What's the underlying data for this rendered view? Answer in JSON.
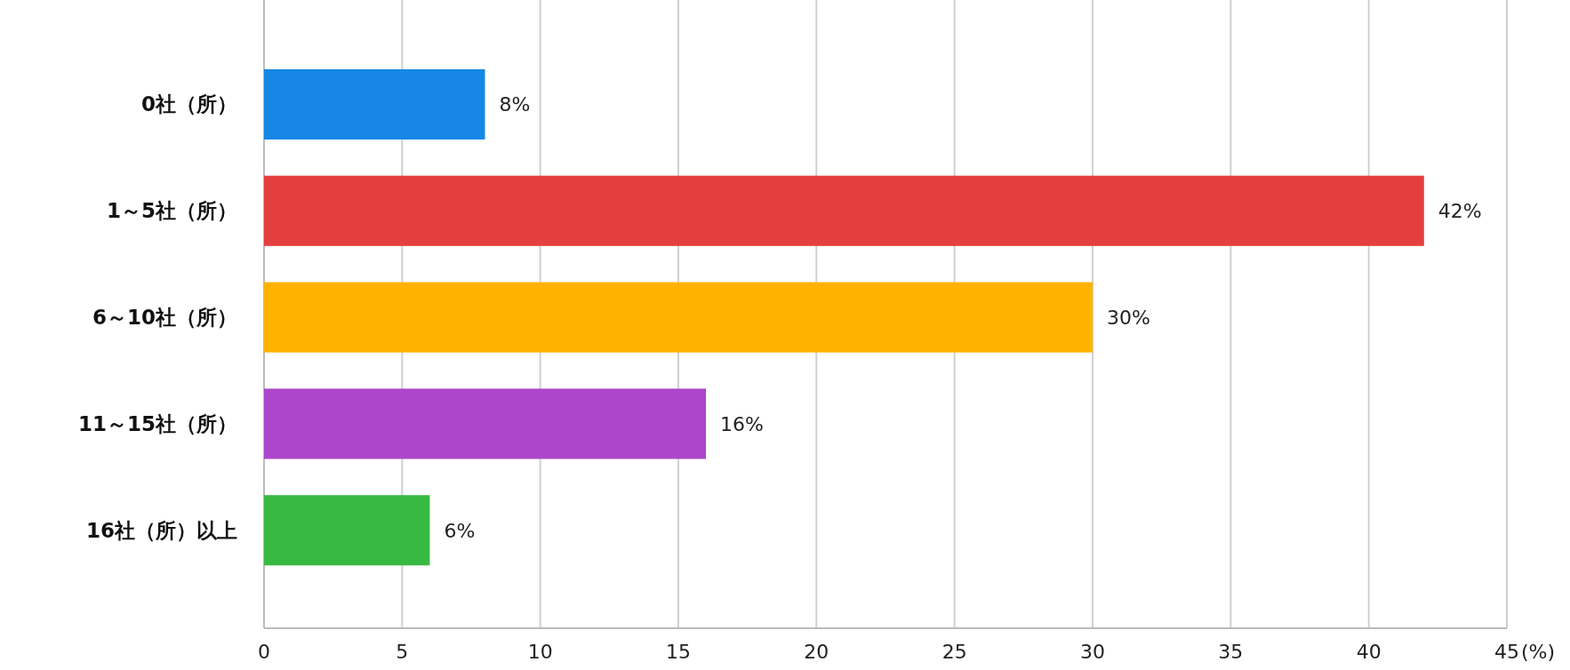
{
  "chart_data": {
    "type": "bar",
    "orientation": "horizontal",
    "categories": [
      "0社（所）",
      "1～5社（所）",
      "6～10社（所）",
      "11～15社（所）",
      "16社（所）以上"
    ],
    "values": [
      8,
      42,
      30,
      16,
      6
    ],
    "colors": [
      "#1787e6",
      "#e53e3e",
      "#ffb300",
      "#ac46cb",
      "#38b942"
    ],
    "value_labels": [
      "8%",
      "42%",
      "30%",
      "16%",
      "6%"
    ],
    "xlim": [
      0,
      45
    ],
    "xticks": [
      0,
      5,
      10,
      15,
      20,
      25,
      30,
      35,
      40,
      45
    ],
    "xlabel": "(%)",
    "grid": "x"
  }
}
